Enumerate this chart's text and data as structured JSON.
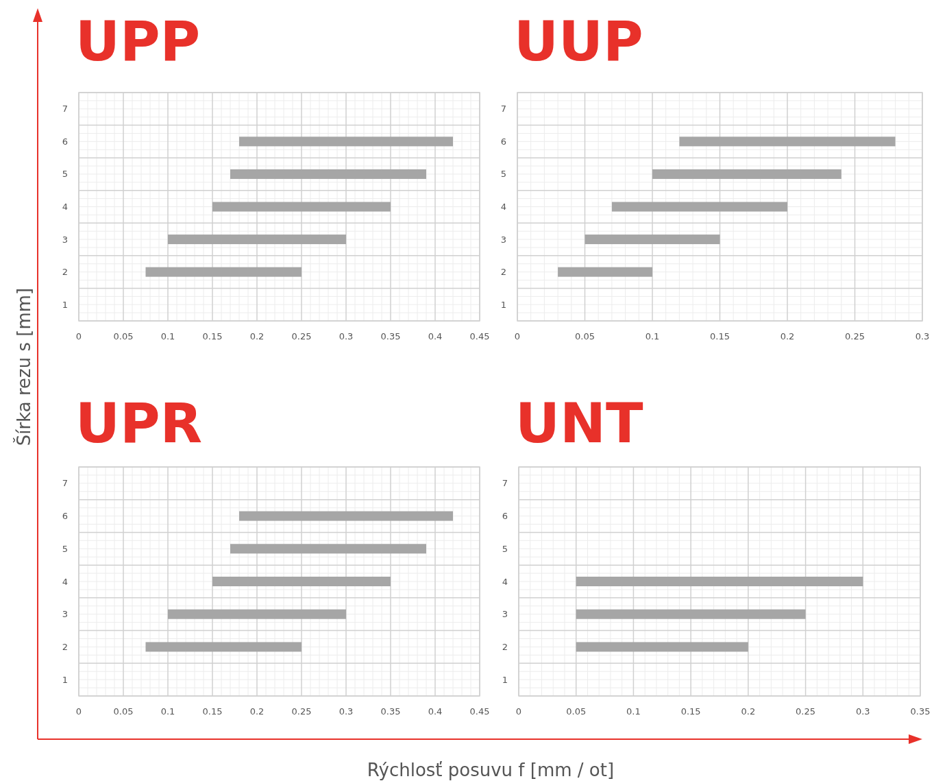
{
  "chart_data": [
    {
      "type": "bar",
      "orientation": "horizontal",
      "title": "UPP",
      "xlabel": "Rýchlosť posuvu f [mm / ot]",
      "ylabel": "Šírka rezu s [mm]",
      "categories": [
        "7",
        "6",
        "5",
        "4",
        "3",
        "2",
        "1"
      ],
      "xlim": [
        0,
        0.45
      ],
      "xticks": [
        0,
        0.05,
        0.1,
        0.15,
        0.2,
        0.25,
        0.3,
        0.35,
        0.4,
        0.45
      ],
      "grid": true,
      "series": [
        {
          "color": "#a6a6a6",
          "base": [
            null,
            0.18,
            0.17,
            0.15,
            0.1,
            0.075,
            null
          ],
          "values": [
            null,
            0.24,
            0.22,
            0.2,
            0.2,
            0.175,
            null
          ]
        }
      ]
    },
    {
      "type": "bar",
      "orientation": "horizontal",
      "title": "UUP",
      "categories": [
        "7",
        "6",
        "5",
        "4",
        "3",
        "2",
        "1"
      ],
      "xlim": [
        0,
        0.3
      ],
      "xticks": [
        0,
        0.05,
        0.1,
        0.15,
        0.2,
        0.25,
        0.3
      ],
      "grid": true,
      "series": [
        {
          "color": "#a6a6a6",
          "base": [
            null,
            0.12,
            0.1,
            0.07,
            0.05,
            0.03,
            null
          ],
          "values": [
            null,
            0.16,
            0.14,
            0.13,
            0.1,
            0.07,
            null
          ]
        }
      ]
    },
    {
      "type": "bar",
      "orientation": "horizontal",
      "title": "UPR",
      "categories": [
        "7",
        "6",
        "5",
        "4",
        "3",
        "2",
        "1"
      ],
      "xlim": [
        0,
        0.45
      ],
      "xticks": [
        0,
        0.05,
        0.1,
        0.15,
        0.2,
        0.25,
        0.3,
        0.35,
        0.4,
        0.45
      ],
      "grid": true,
      "series": [
        {
          "color": "#a6a6a6",
          "base": [
            null,
            0.18,
            0.17,
            0.15,
            0.1,
            0.075,
            null
          ],
          "values": [
            null,
            0.24,
            0.22,
            0.2,
            0.2,
            0.175,
            null
          ]
        }
      ]
    },
    {
      "type": "bar",
      "orientation": "horizontal",
      "title": "UNT",
      "categories": [
        "7",
        "6",
        "5",
        "4",
        "3",
        "2",
        "1"
      ],
      "xlim": [
        0,
        0.35
      ],
      "xticks": [
        0,
        0.05,
        0.1,
        0.15,
        0.2,
        0.25,
        0.3,
        0.35
      ],
      "grid": true,
      "series": [
        {
          "color": "#a6a6a6",
          "base": [
            null,
            null,
            null,
            0.05,
            0.05,
            0.05,
            null
          ],
          "values": [
            null,
            null,
            null,
            0.25,
            0.2,
            0.15,
            null
          ]
        }
      ]
    }
  ]
}
